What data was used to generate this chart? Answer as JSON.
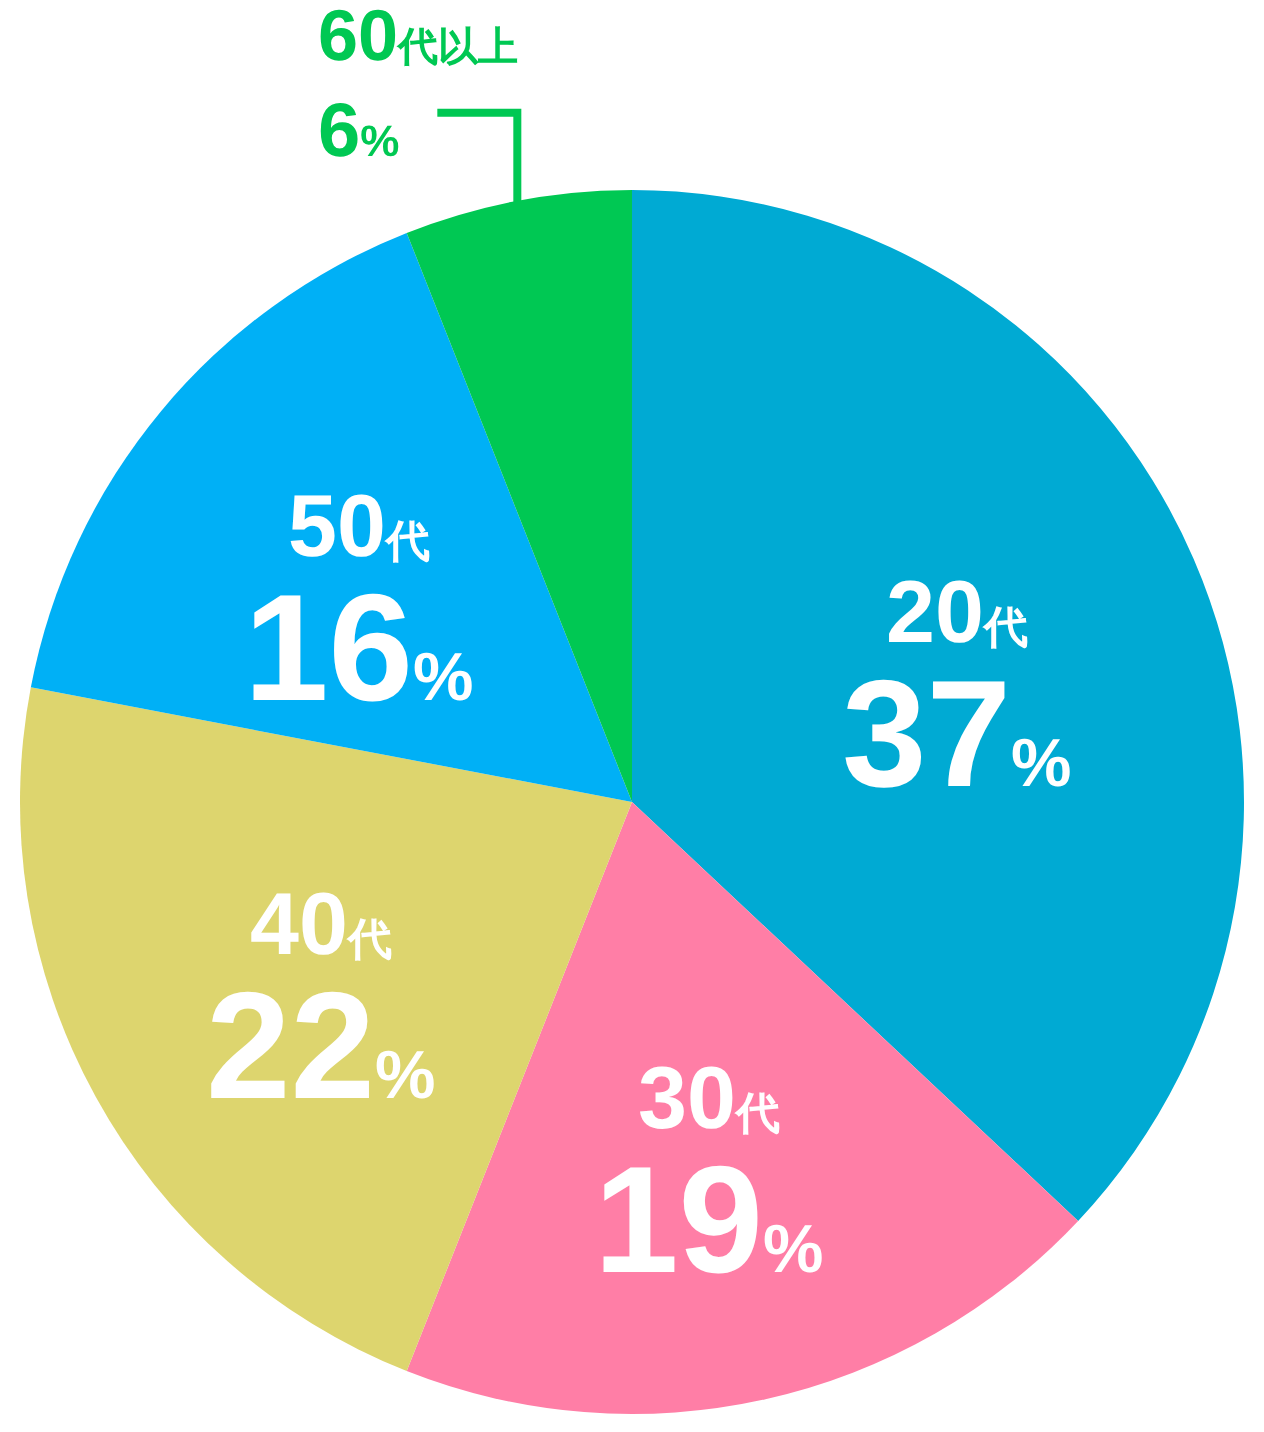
{
  "chart_data": {
    "type": "pie",
    "categories": [
      "20代",
      "30代",
      "40代",
      "50代",
      "60代以上"
    ],
    "values": [
      37,
      19,
      22,
      16,
      6
    ],
    "value_labels": [
      "37%",
      "19%",
      "22%",
      "16%",
      "6%"
    ],
    "colors": [
      "#00aad3",
      "#ff7ea6",
      "#ddd56e",
      "#00b0f6",
      "#00c853"
    ]
  }
}
